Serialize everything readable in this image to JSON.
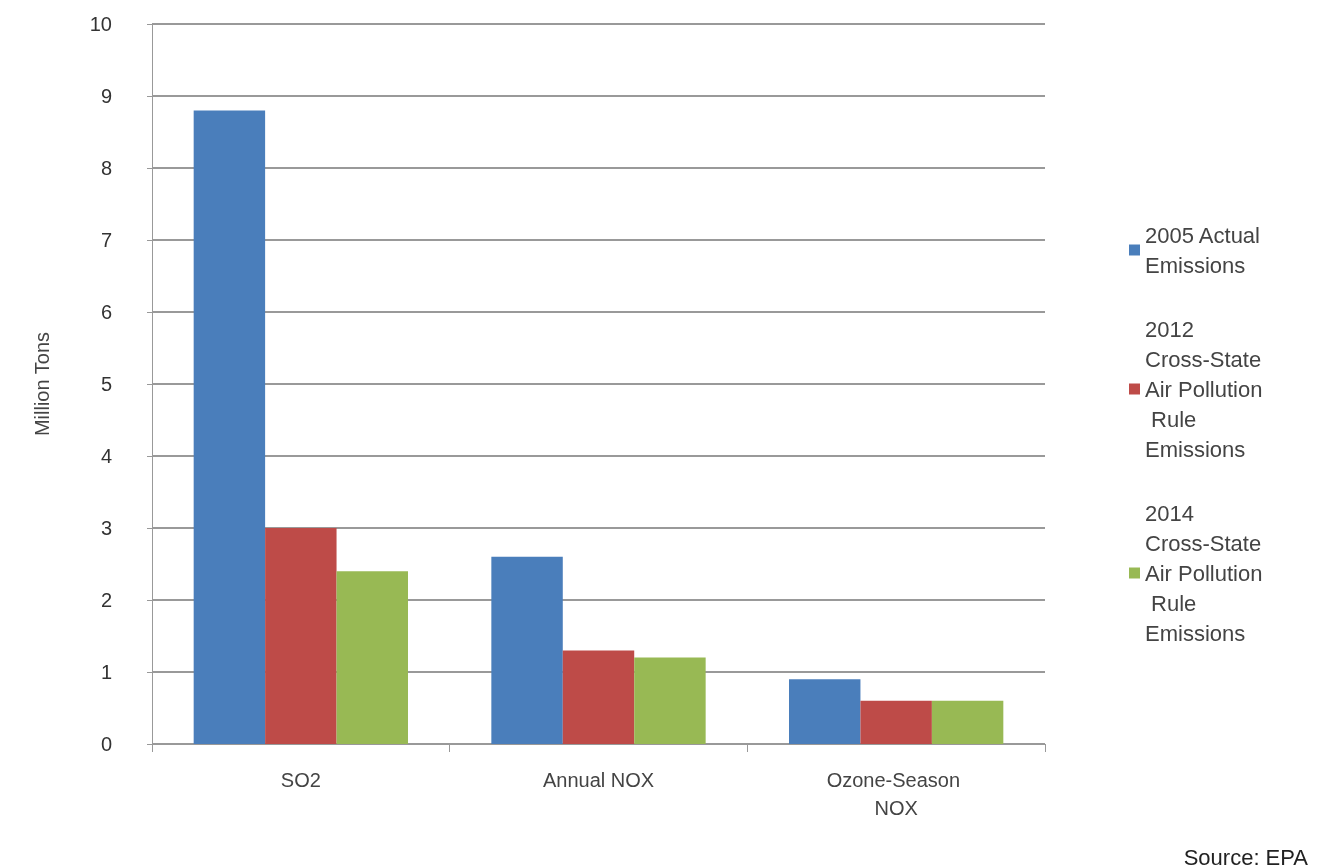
{
  "chart_data": {
    "type": "bar",
    "ylabel": "Million Tons",
    "categories": [
      "SO2",
      "Annual NOX",
      "Ozone-Season NOX"
    ],
    "series": [
      {
        "name": "2005 Actual Emissions",
        "color": "#4a7ebb",
        "values": [
          8.8,
          2.6,
          0.9
        ]
      },
      {
        "name": "2012 Cross-State Air Pollution Rule Emissions",
        "color": "#be4b48",
        "values": [
          3.0,
          1.3,
          0.6
        ]
      },
      {
        "name": "2014 Cross-State Air Pollution Rule Emissions",
        "color": "#98b954",
        "values": [
          2.4,
          1.2,
          0.6
        ]
      }
    ],
    "ylim": [
      0,
      10
    ],
    "yticks": [
      0,
      1,
      2,
      3,
      4,
      5,
      6,
      7,
      8,
      9,
      10
    ],
    "grid": "y",
    "legend": "right",
    "annotations": [
      "Source: EPA"
    ]
  }
}
